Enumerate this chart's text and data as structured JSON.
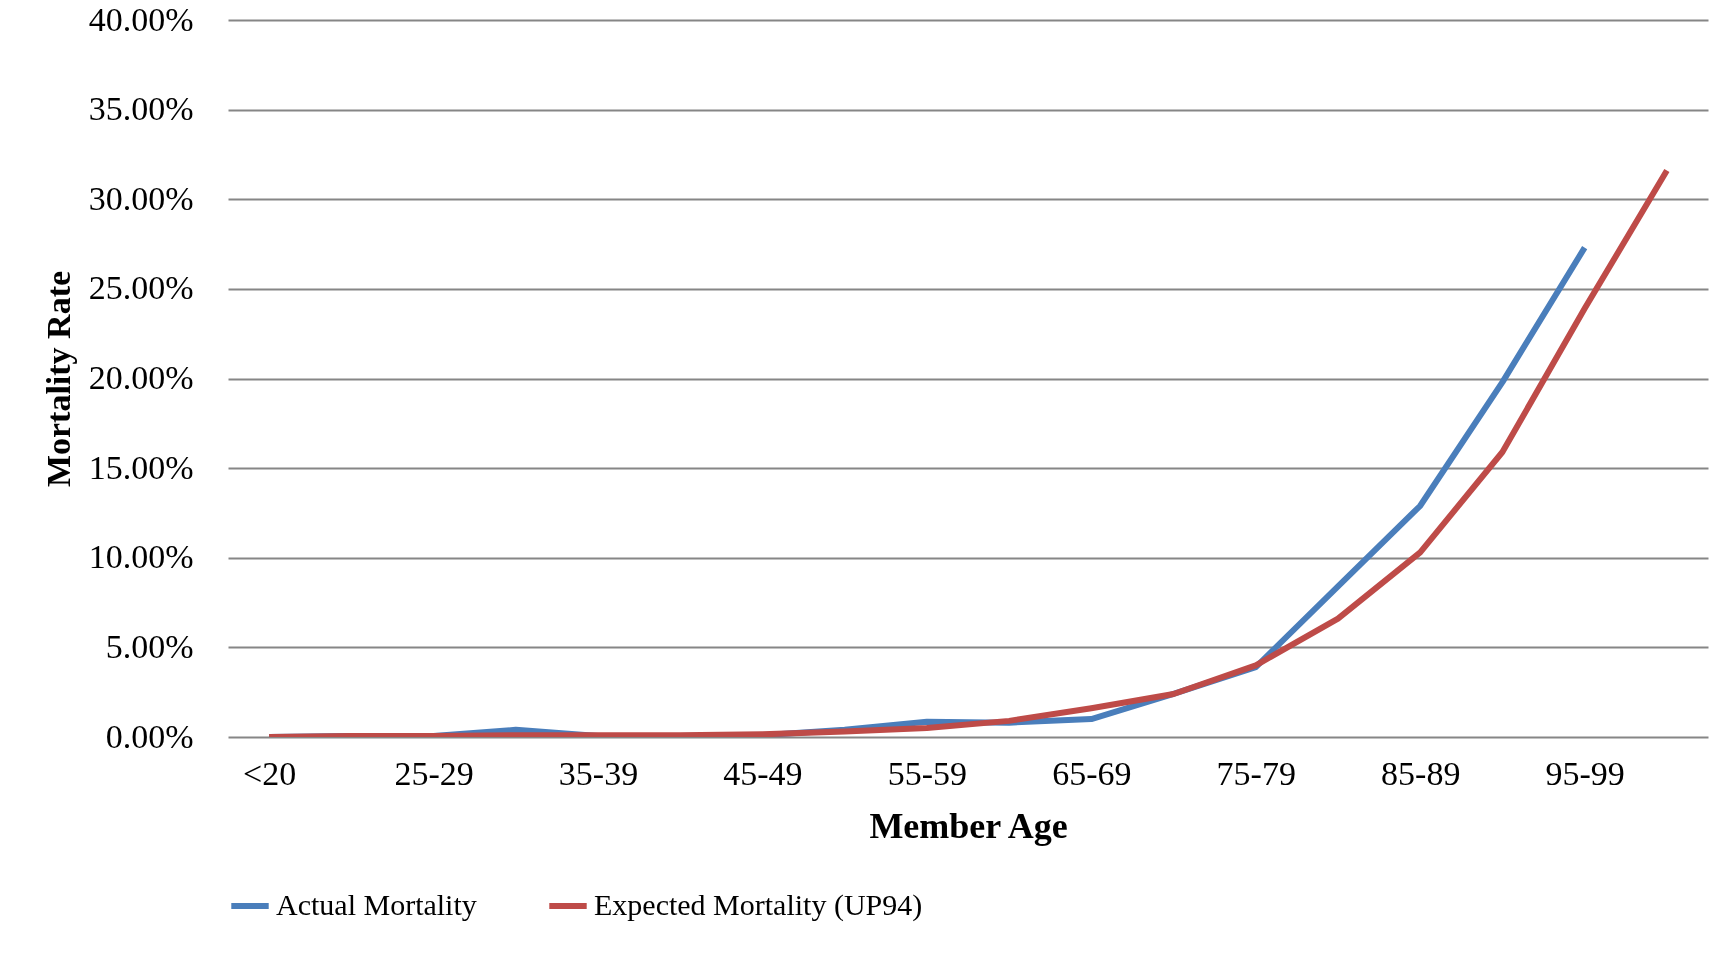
{
  "chart_data": {
    "type": "line",
    "xlabel": "Member Age",
    "ylabel": "Mortality Rate",
    "categories": [
      "<20",
      null,
      "25-29",
      null,
      "35-39",
      null,
      "45-49",
      null,
      "55-59",
      null,
      "65-69",
      null,
      "75-79",
      null,
      "85-89",
      null,
      "95-99",
      null
    ],
    "series": [
      {
        "name": "Actual Mortality",
        "color": "#4a7ebb",
        "values": [
          0,
          0.05,
          0.05,
          0.4,
          0.05,
          0.05,
          0.1,
          0.4,
          0.85,
          0.8,
          1.0,
          2.4,
          3.9,
          8.4,
          12.9,
          19.8,
          27.3,
          null
        ]
      },
      {
        "name": "Expected Mortality (UP94)",
        "color": "#be4b48",
        "values": [
          0,
          0.05,
          0.05,
          0.1,
          0.1,
          0.1,
          0.15,
          0.3,
          0.5,
          0.9,
          1.6,
          2.4,
          4.0,
          6.6,
          10.3,
          15.9,
          23.9,
          31.6
        ]
      }
    ],
    "ylim": [
      0,
      40
    ],
    "yticks": [
      {
        "value": 0,
        "label": "0.00%"
      },
      {
        "value": 5,
        "label": "5.00%"
      },
      {
        "value": 10,
        "label": "10.00%"
      },
      {
        "value": 15,
        "label": "15.00%"
      },
      {
        "value": 20,
        "label": "20.00%"
      },
      {
        "value": 25,
        "label": "25.00%"
      },
      {
        "value": 30,
        "label": "30.00%"
      },
      {
        "value": 35,
        "label": "35.00%"
      },
      {
        "value": 40,
        "label": "40.00%"
      }
    ],
    "grid": "y",
    "legend": "bottom",
    "marker": "none",
    "line_style": "solid"
  }
}
